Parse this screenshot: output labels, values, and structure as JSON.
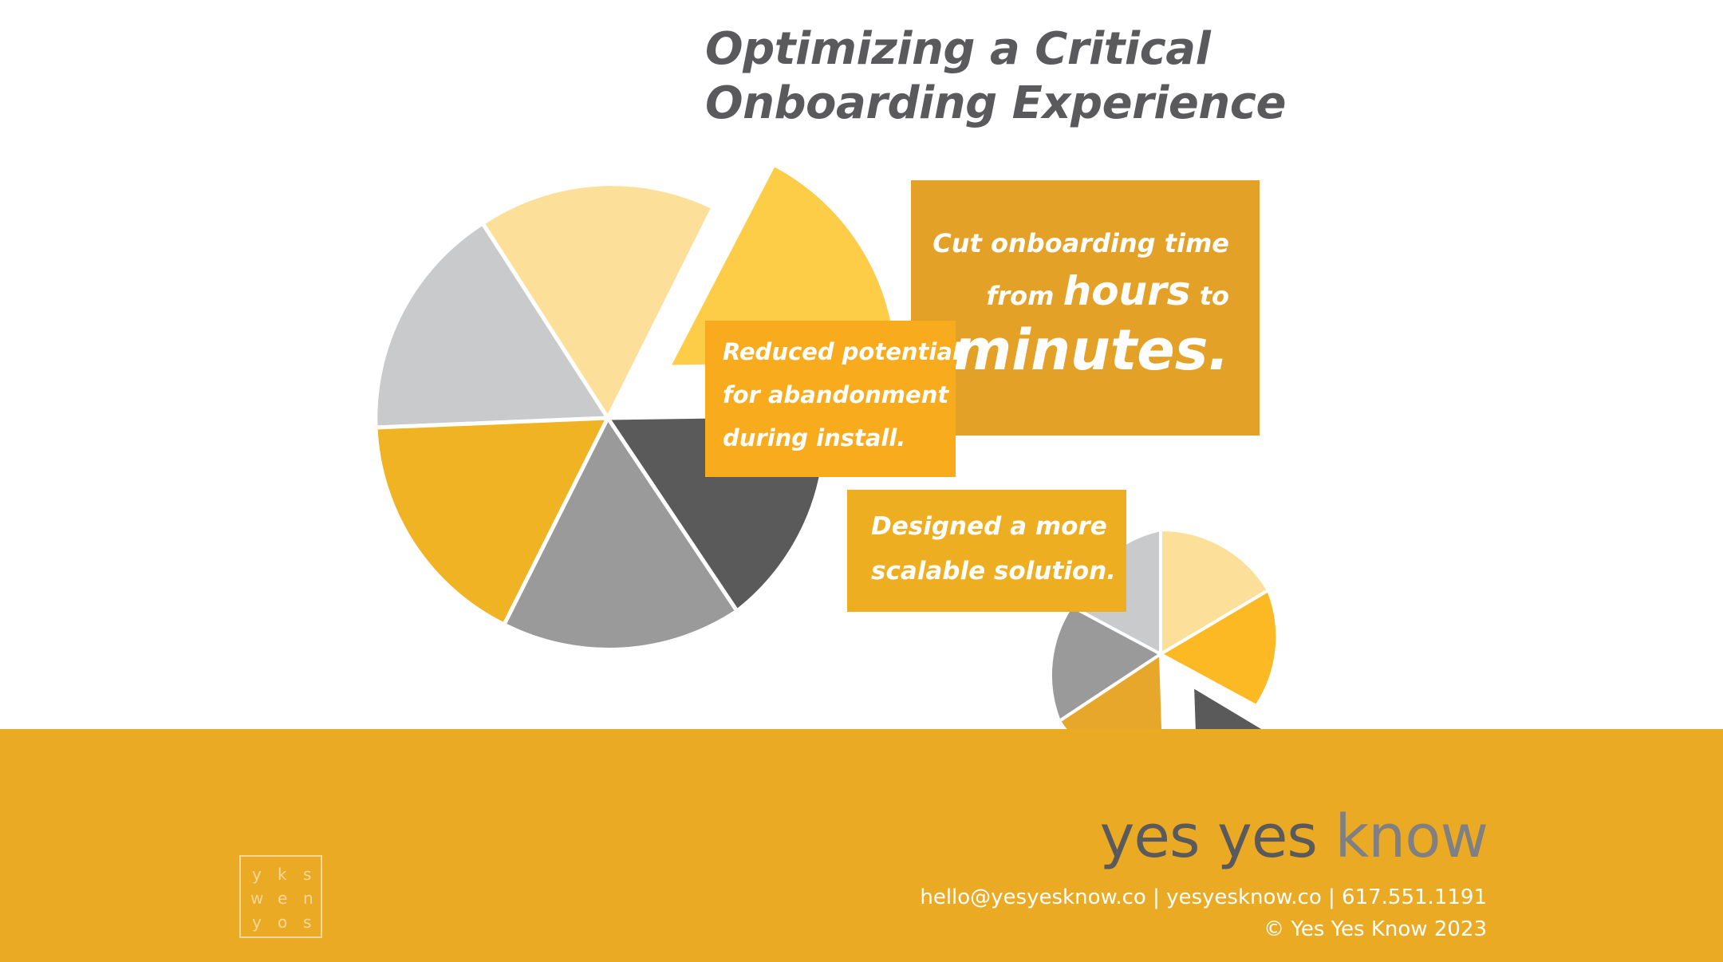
{
  "title": {
    "line1": "Optimizing a Critical",
    "line2": "Onboarding Experience"
  },
  "callouts": {
    "time": {
      "line1": "Cut onboarding time",
      "line2_prefix": "from ",
      "line2_big": "hours",
      "line2_suffix": " to",
      "line3": "minutes."
    },
    "abandonment": {
      "lines": [
        "Reduced potential",
        "for abandonment",
        "during install."
      ]
    },
    "scalable": {
      "lines": [
        "Designed a more",
        "scalable solution."
      ]
    }
  },
  "footer": {
    "brand_part1": "yes yes ",
    "brand_part2": "know",
    "contact": "hello@yesyesknow.co | yesyesknow.co | 617.551.1191",
    "copyright": "© Yes Yes Know 2023",
    "logo_letters": [
      "y",
      "k",
      "s",
      "w",
      "e",
      "n",
      "y",
      "o",
      "s"
    ]
  },
  "colors": {
    "accent": "#ebaa23",
    "gold": "#f0b323",
    "pale_yellow": "#fce09a",
    "light_gray": "#c9cacc",
    "mid_gray": "#9a9a9b",
    "dark_gray": "#5a5a5b",
    "text_gray": "#5a5a5d"
  }
}
